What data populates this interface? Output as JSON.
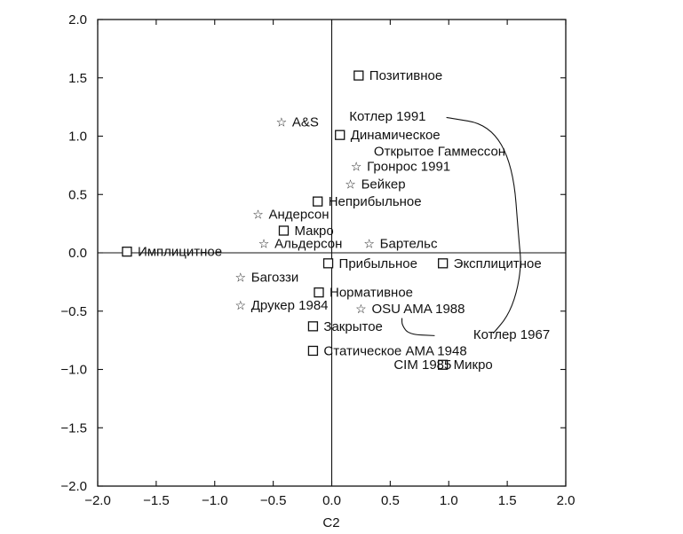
{
  "chart_data": {
    "type": "scatter",
    "xlabel": "C2",
    "ylabel": "",
    "xlim": [
      -2.0,
      2.0
    ],
    "ylim": [
      -2.0,
      2.0
    ],
    "x_ticks": [
      -2.0,
      -1.5,
      -1.0,
      -0.5,
      0.0,
      0.5,
      1.0,
      1.5,
      2.0
    ],
    "y_ticks": [
      -2.0,
      -1.5,
      -1.0,
      -0.5,
      0.0,
      0.5,
      1.0,
      1.5,
      2.0
    ],
    "tick_labels_x": [
      "−2.0",
      "−1.5",
      "−1.0",
      "−0.5",
      "0.0",
      "0.5",
      "1.0",
      "1.5",
      "2.0"
    ],
    "tick_labels_y": [
      "2.0",
      "1.5",
      "1.0",
      "0.5",
      "0.0",
      "−0.5",
      "−1.0",
      "−1.5",
      "−2.0"
    ],
    "grid": false,
    "zero_lines": true,
    "points": [
      {
        "label": "Позитивное",
        "marker": "square",
        "x": 0.23,
        "y": 1.52,
        "label_side": "right"
      },
      {
        "label": "A&S",
        "marker": "star",
        "x": -0.43,
        "y": 1.12,
        "label_side": "right"
      },
      {
        "label": "Динамическое",
        "marker": "square",
        "x": 0.07,
        "y": 1.01,
        "label_side": "right"
      },
      {
        "label": "Гронрос 1991",
        "marker": "star",
        "x": 0.21,
        "y": 0.74,
        "label_side": "right"
      },
      {
        "label": "Бейкер",
        "marker": "star",
        "x": 0.16,
        "y": 0.59,
        "label_side": "right"
      },
      {
        "label": "Неприбыльное",
        "marker": "square",
        "x": -0.12,
        "y": 0.44,
        "label_side": "right"
      },
      {
        "label": "Андерсон",
        "marker": "star",
        "x": -0.63,
        "y": 0.33,
        "label_side": "right"
      },
      {
        "label": "Макро",
        "marker": "square",
        "x": -0.41,
        "y": 0.19,
        "label_side": "right"
      },
      {
        "label": "Альдерсон",
        "marker": "star",
        "x": -0.58,
        "y": 0.08,
        "label_side": "right"
      },
      {
        "label": "Бартельс",
        "marker": "star",
        "x": 0.32,
        "y": 0.08,
        "label_side": "right"
      },
      {
        "label": "Имплицитное",
        "marker": "square",
        "x": -1.75,
        "y": 0.01,
        "label_side": "right"
      },
      {
        "label": "Прибыльное",
        "marker": "square",
        "x": -0.03,
        "y": -0.09,
        "label_side": "right"
      },
      {
        "label": "Эксплицитное",
        "marker": "square",
        "x": 0.95,
        "y": -0.09,
        "label_side": "right"
      },
      {
        "label": "Багоззи",
        "marker": "star",
        "x": -0.78,
        "y": -0.21,
        "label_side": "right"
      },
      {
        "label": "Нормативное",
        "marker": "square",
        "x": -0.11,
        "y": -0.34,
        "label_side": "right"
      },
      {
        "label": "Друкер 1984",
        "marker": "star",
        "x": -0.78,
        "y": -0.45,
        "label_side": "right"
      },
      {
        "label": "OSU AMA 1988",
        "marker": "star",
        "x": 0.25,
        "y": -0.48,
        "label_side": "right"
      },
      {
        "label": "Закрытое",
        "marker": "square",
        "x": -0.16,
        "y": -0.63,
        "label_side": "right"
      },
      {
        "label": "Статическое AMA 1948",
        "marker": "square",
        "x": -0.16,
        "y": -0.84,
        "label_side": "right"
      },
      {
        "label": "Микро",
        "marker": "square",
        "x": 0.95,
        "y": -0.96,
        "label_side": "right"
      }
    ],
    "annotations": [
      {
        "text": "Котлер 1991",
        "x": 0.15,
        "y": 1.17
      },
      {
        "text": "Открытое Гаммессон",
        "x": 0.36,
        "y": 0.87
      },
      {
        "text": "Котлер 1967",
        "x": 1.21,
        "y": -0.7
      },
      {
        "text": "CIM 1985",
        "x": 0.53,
        "y": -0.96
      }
    ],
    "curves": [
      {
        "from_label": "Котлер 1991",
        "path_points": [
          [
            0.98,
            1.16
          ],
          [
            1.35,
            1.1
          ],
          [
            1.55,
            0.75
          ],
          [
            1.6,
            0.1
          ],
          [
            1.62,
            -0.1
          ],
          [
            1.58,
            -0.35
          ],
          [
            1.5,
            -0.55
          ],
          [
            1.38,
            -0.69
          ]
        ]
      },
      {
        "from_label": "Котлер 1967",
        "path_points": [
          [
            0.6,
            -0.56
          ],
          [
            0.6,
            -0.62
          ],
          [
            0.66,
            -0.7
          ],
          [
            0.88,
            -0.71
          ]
        ]
      }
    ]
  }
}
